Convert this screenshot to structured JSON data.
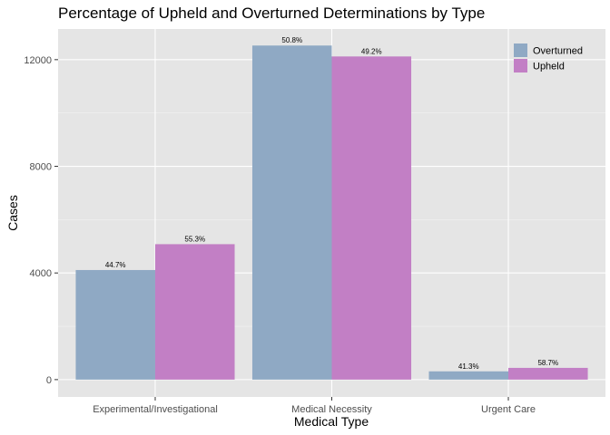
{
  "chart_data": {
    "type": "bar",
    "title": "Percentage of Upheld and Overturned Determinations by Type",
    "xlabel": "Medical Type",
    "ylabel": "Cases",
    "categories": [
      "Experimental/Investigational",
      "Medical Necessity",
      "Urgent Care"
    ],
    "ylim": [
      -650,
      13150
    ],
    "yticks": [
      0,
      4000,
      8000,
      12000
    ],
    "ytick_labels": [
      "0",
      "4000",
      "8000",
      "12000"
    ],
    "grid": true,
    "legend_position": "top-right",
    "series": [
      {
        "name": "Overturned",
        "color": "#8FA9C4",
        "values": [
          4110,
          12530,
          310
        ],
        "labels": [
          "44.7%",
          "50.8%",
          "41.3%"
        ]
      },
      {
        "name": "Upheld",
        "color": "#C27FC5",
        "values": [
          5080,
          12120,
          440
        ],
        "labels": [
          "55.3%",
          "49.2%",
          "58.7%"
        ]
      }
    ]
  }
}
